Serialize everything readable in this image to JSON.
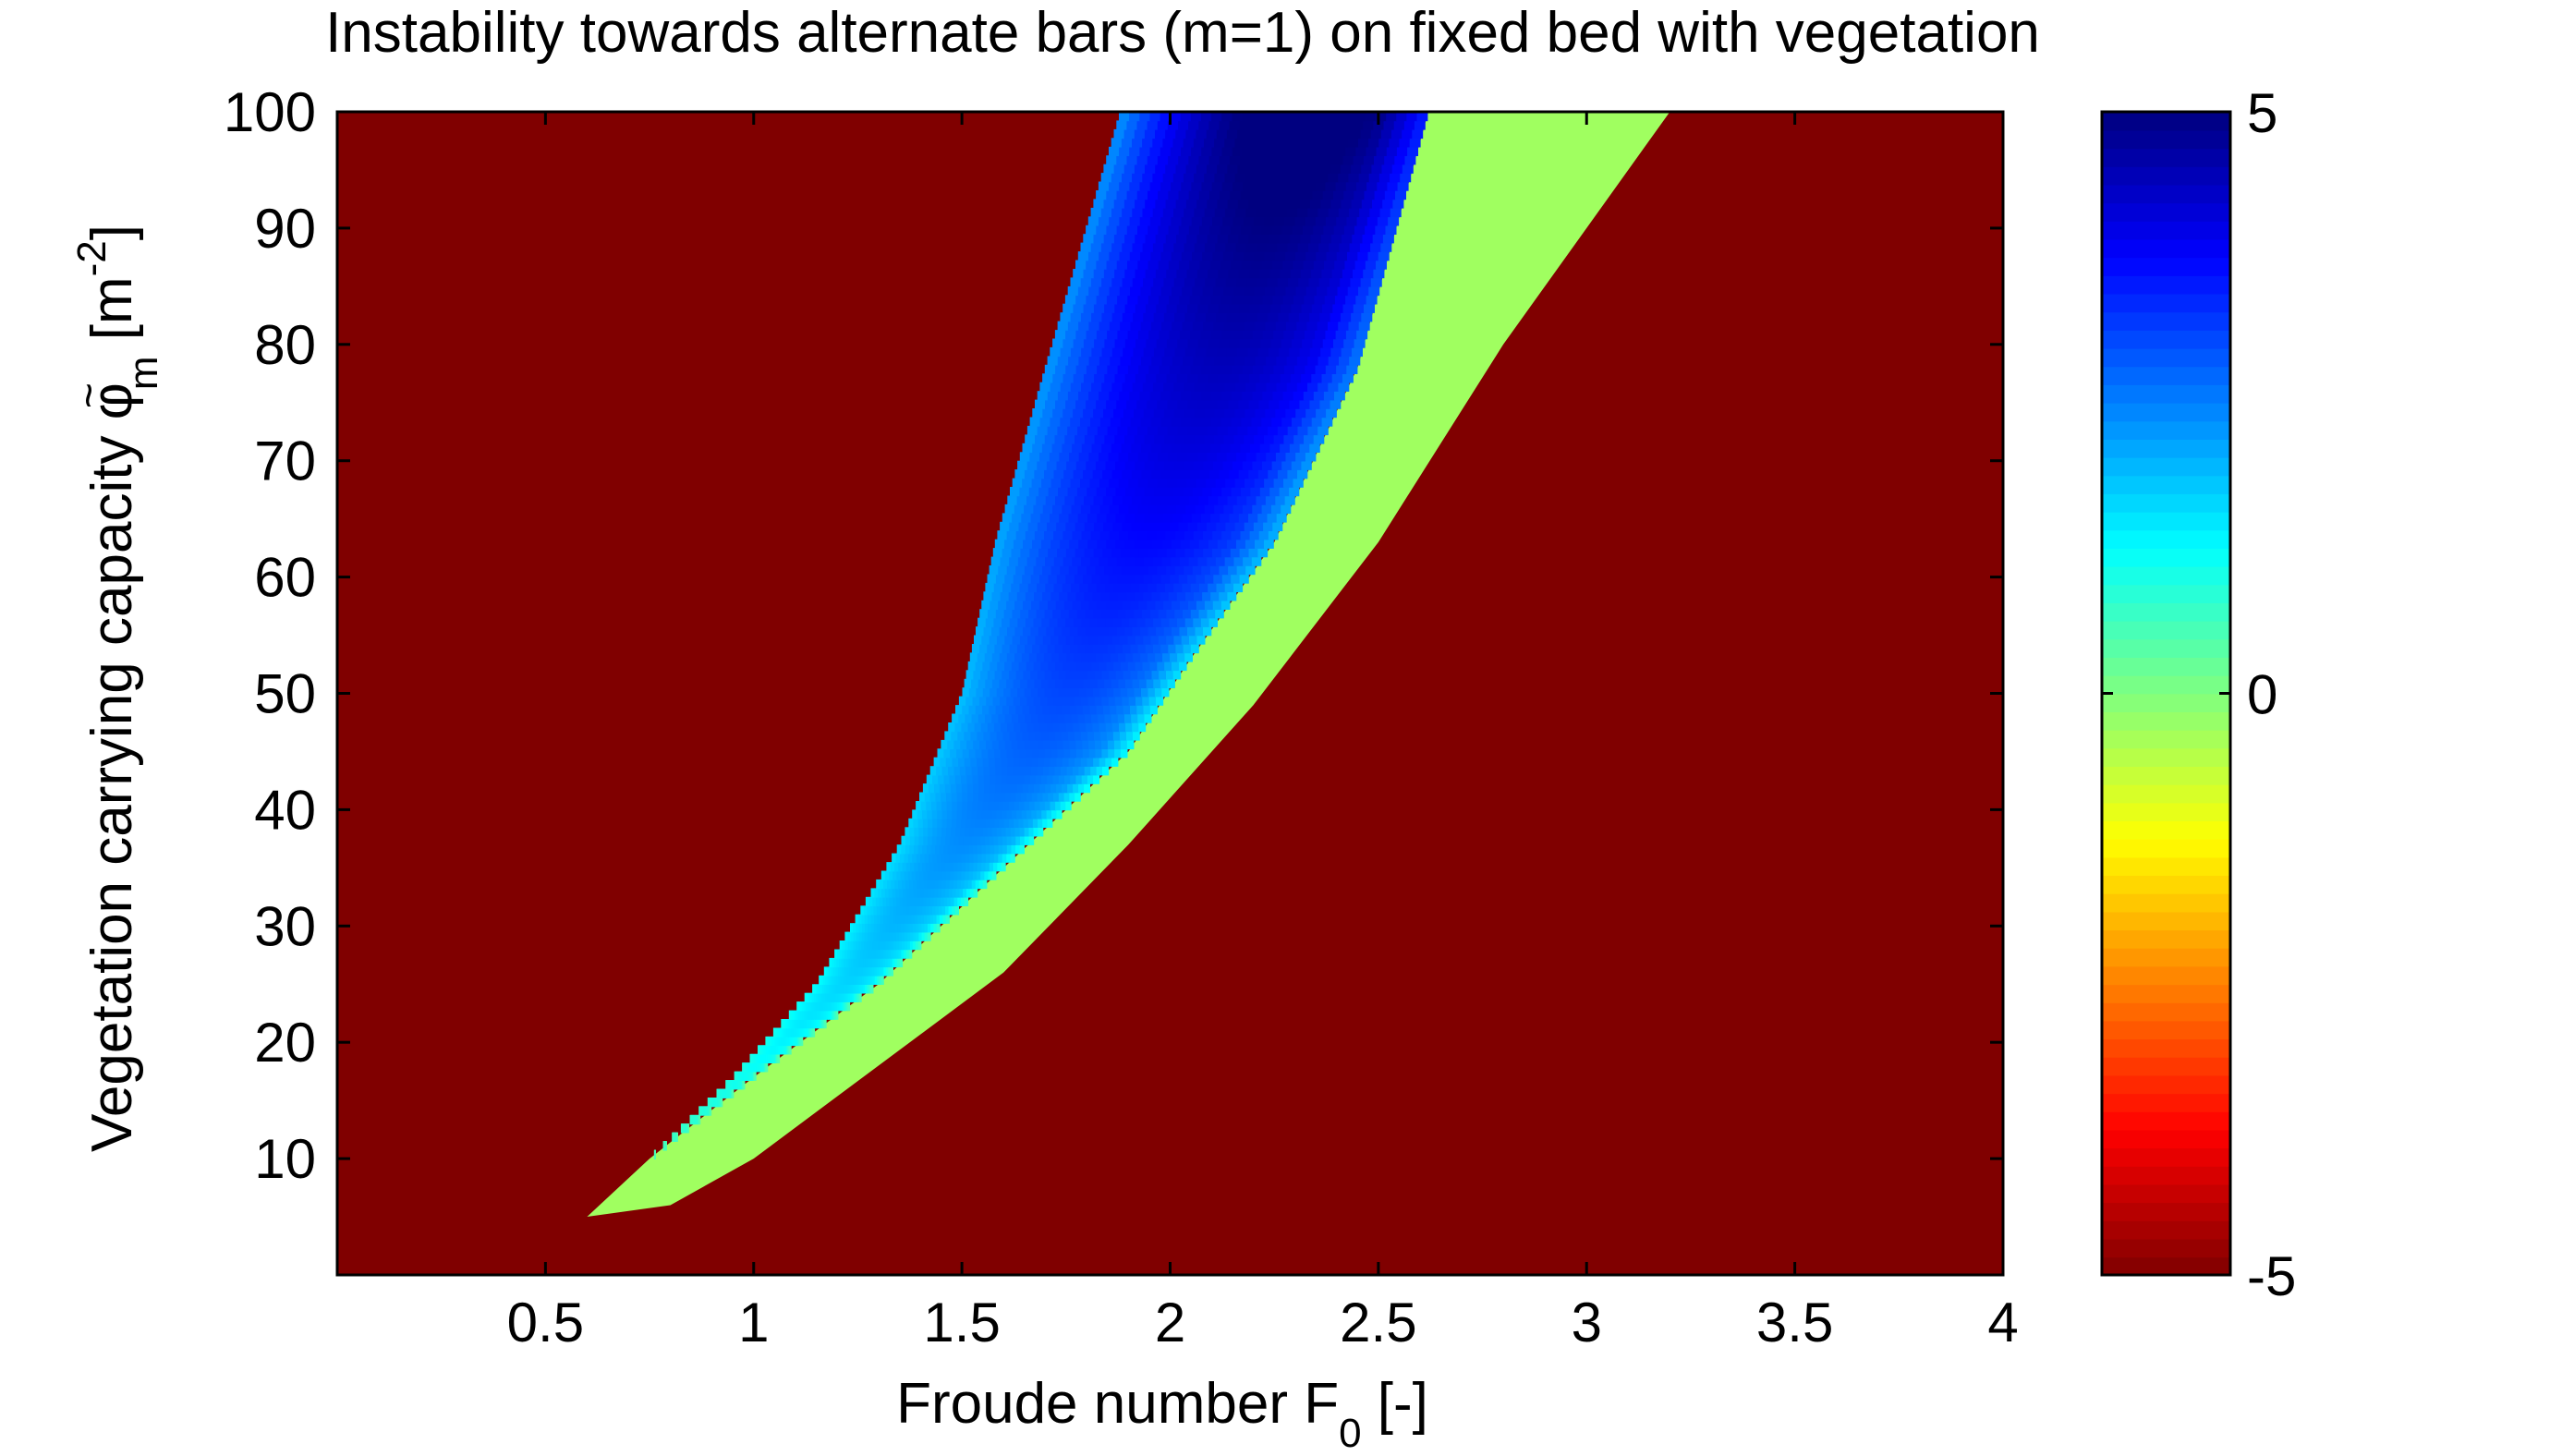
{
  "chart_data": {
    "type": "heatmap",
    "title": "Instability towards alternate bars (m=1) on fixed bed with vegetation",
    "xlabel": {
      "main": "Froude number  F",
      "sub": "0",
      "tail": " [-]"
    },
    "ylabel": {
      "main": "Vegetation carrying capacity  φ",
      "accent": "~",
      "sub": "m",
      "tail": " [m",
      "sup": "-2",
      "end": "]"
    },
    "xlim": [
      0,
      4
    ],
    "ylim": [
      0,
      100
    ],
    "xticks": [
      0.5,
      1,
      1.5,
      2,
      2.5,
      3,
      3.5,
      4
    ],
    "xtick_labels": [
      "0.5",
      "1",
      "1.5",
      "2",
      "2.5",
      "3",
      "3.5",
      "4"
    ],
    "yticks": [
      10,
      20,
      30,
      40,
      50,
      60,
      70,
      80,
      90,
      100
    ],
    "ytick_labels": [
      "10",
      "20",
      "30",
      "40",
      "50",
      "60",
      "70",
      "80",
      "90",
      "100"
    ],
    "colorbar": {
      "colormap": "jet",
      "clim": [
        -5,
        5
      ],
      "ticks": [
        5,
        0,
        -5
      ],
      "tick_labels": [
        "5",
        "0",
        "-5"
      ]
    },
    "background_value": -5,
    "regions": [
      {
        "name": "stable (growth rate saturated at clim minimum)",
        "value": -5,
        "color": "#800000"
      },
      {
        "name": "unstable, low growth band",
        "value": 0.3,
        "color": "#a0ff60",
        "left_boundary": [
          [
            0.6,
            5
          ],
          [
            0.75,
            10
          ],
          [
            1,
            17
          ],
          [
            1.3,
            25
          ],
          [
            1.6,
            35
          ],
          [
            1.9,
            45
          ],
          [
            2.05,
            53
          ],
          [
            2.25,
            63
          ],
          [
            2.45,
            78
          ],
          [
            2.62,
            100
          ]
        ],
        "right_boundary": [
          [
            0.6,
            5
          ],
          [
            0.8,
            6
          ],
          [
            1,
            10
          ],
          [
            1.3,
            18
          ],
          [
            1.6,
            26
          ],
          [
            1.9,
            37
          ],
          [
            2.2,
            49
          ],
          [
            2.5,
            63
          ],
          [
            2.8,
            80
          ],
          [
            3.2,
            100
          ]
        ]
      },
      {
        "name": "unstable, high growth band",
        "color_scale": "jet",
        "value_range": [
          0.5,
          5.4
        ],
        "peak": {
          "x": 2.1,
          "y": 96,
          "value": 5.4
        },
        "left_boundary": [
          [
            0.75,
            10
          ],
          [
            0.95,
            17
          ],
          [
            1.15,
            25
          ],
          [
            1.35,
            37
          ],
          [
            1.5,
            50
          ],
          [
            1.58,
            63
          ],
          [
            1.7,
            78
          ],
          [
            1.88,
            100
          ]
        ],
        "right_boundary": [
          [
            0.75,
            10
          ],
          [
            1,
            17
          ],
          [
            1.3,
            25
          ],
          [
            1.6,
            35
          ],
          [
            1.9,
            45
          ],
          [
            2.05,
            53
          ],
          [
            2.25,
            63
          ],
          [
            2.45,
            78
          ],
          [
            2.62,
            100
          ]
        ]
      }
    ]
  }
}
